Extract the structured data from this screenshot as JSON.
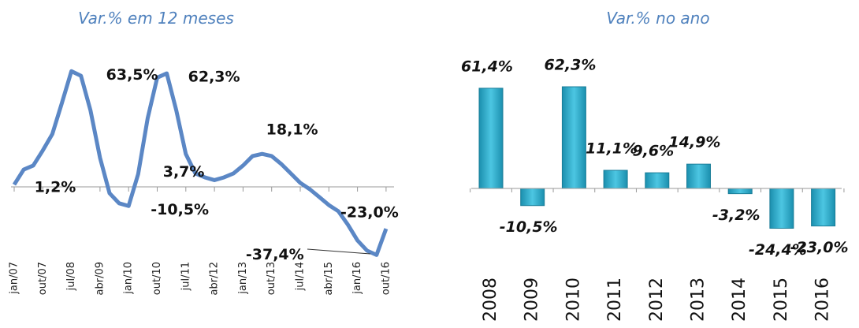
{
  "chart_data": [
    {
      "type": "line",
      "title": "Var.% em 12 meses",
      "color": "#5b87c5",
      "categories": [
        "jan/07",
        null,
        null,
        "out/07",
        null,
        null,
        "jul/08",
        null,
        null,
        "abr/09",
        null,
        null,
        "jan/10",
        null,
        null,
        "out/10",
        null,
        null,
        "jul/11",
        null,
        null,
        "abr/12",
        null,
        null,
        "jan/13",
        null,
        null,
        "out/13",
        null,
        null,
        "jul/14",
        null,
        null,
        "abr/15",
        null,
        null,
        "jan/16",
        null,
        null,
        "out/16"
      ],
      "values": [
        1.2,
        9.5,
        11.7,
        20,
        29,
        46,
        63.5,
        61,
        42,
        16,
        -3.5,
        -9,
        -10.5,
        7,
        37.7,
        60,
        62.3,
        42,
        18,
        7.4,
        5.2,
        3.7,
        5.2,
        7.4,
        11.7,
        16.9,
        18.1,
        16.9,
        12.6,
        7.4,
        2.2,
        -1.3,
        -5.6,
        -10,
        -13.4,
        -20.8,
        -29.4,
        -35,
        -37.4,
        -23.0
      ],
      "value_labels": [
        "1,2%",
        null,
        null,
        null,
        null,
        null,
        "63,5%",
        null,
        null,
        null,
        null,
        null,
        "-10,5%",
        null,
        null,
        null,
        "62,3%",
        null,
        null,
        null,
        null,
        "3,7%",
        null,
        null,
        null,
        null,
        "18,1%",
        null,
        null,
        null,
        null,
        null,
        null,
        null,
        null,
        null,
        null,
        null,
        "-37,4%",
        "-23,0%"
      ]
    },
    {
      "type": "bar",
      "title": "Var.% no ano",
      "color": "#2fb0cf",
      "categories": [
        "2008",
        "2009",
        "2010",
        "2011",
        "2012",
        "2013",
        "2014",
        "2015",
        "2016"
      ],
      "values": [
        61.4,
        -10.5,
        62.3,
        11.1,
        9.6,
        14.9,
        -3.2,
        -24.4,
        -23.0
      ],
      "value_labels": [
        "61,4%",
        "-10,5%",
        "62,3%",
        "11,1%",
        "9,6%",
        "14,9%",
        "-3,2%",
        "-24,4%",
        "-23,0%"
      ]
    }
  ]
}
